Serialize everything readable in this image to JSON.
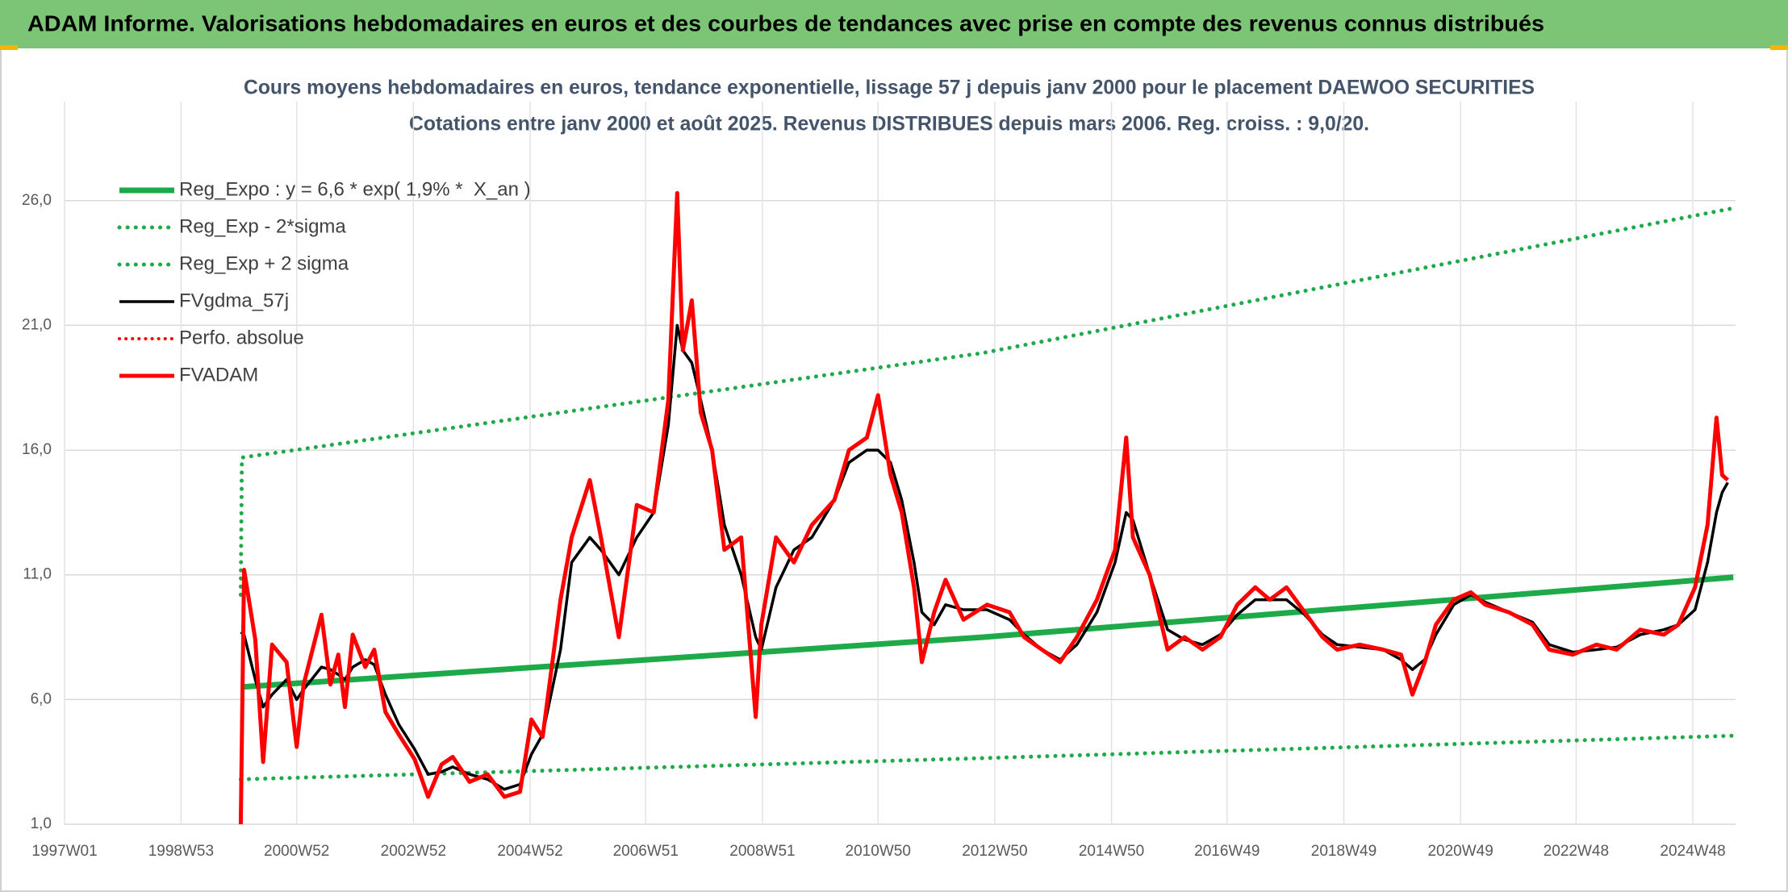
{
  "header": {
    "title": "ADAM Informe. Valorisations hebdomadaires en euros et des courbes de tendances avec prise en compte des revenus connus distribués"
  },
  "chart_data": {
    "type": "line",
    "title": "Cours moyens hebdomadaires en euros, tendance exponentielle, lissage 57 j depuis janv 2000 pour le placement DAEWOO SECURITIES",
    "subtitle": "Cotations entre janv 2000 et août 2025. Revenus DISTRIBUES depuis mars 2006. Reg. croiss. : 9,0/20.",
    "xlim": [
      "1997W01",
      "2025W34"
    ],
    "xticks": [
      "1997W01",
      "1998W53",
      "2000W52",
      "2002W52",
      "2004W52",
      "2006W51",
      "2008W51",
      "2010W50",
      "2012W50",
      "2014W50",
      "2016W49",
      "2018W49",
      "2020W49",
      "2022W48",
      "2024W48"
    ],
    "ylim": [
      1,
      29
    ],
    "yticks": [
      {
        "value": 1,
        "label": "1,0"
      },
      {
        "value": 6,
        "label": "6,0"
      },
      {
        "value": 11,
        "label": "11,0"
      },
      {
        "value": 16,
        "label": "16,0"
      },
      {
        "value": 21,
        "label": "21,0"
      },
      {
        "value": 26,
        "label": "26,0"
      }
    ],
    "grid": true,
    "legend": "top-left",
    "x": [
      "2000W02",
      "2000W05",
      "2000W15",
      "2000W22",
      "2000W30",
      "2000W43",
      "2000W52",
      "2001W06",
      "2001W22",
      "2001W30",
      "2001W37",
      "2001W43",
      "2001W50",
      "2002W09",
      "2002W17",
      "2002W27",
      "2002W39",
      "2003W01",
      "2003W13",
      "2003W25",
      "2003W35",
      "2003W50",
      "2004W14",
      "2004W29",
      "2004W43",
      "2005W01",
      "2005W11",
      "2005W27",
      "2005W37",
      "2006W01",
      "2006W11",
      "2006W27",
      "2006W43",
      "2007W06",
      "2007W19",
      "2007W27",
      "2007W32",
      "2007W40",
      "2007W48",
      "2008W06",
      "2008W17",
      "2008W32",
      "2008W45",
      "2008W50",
      "2009W11",
      "2009W27",
      "2009W43",
      "2010W11",
      "2010W24",
      "2010W40",
      "2010W50",
      "2011W09",
      "2011W19",
      "2011W30",
      "2011W37",
      "2011W48",
      "2012W06",
      "2012W22",
      "2012W43",
      "2013W11",
      "2013W24",
      "2013W40",
      "2014W04",
      "2014W19",
      "2014W37",
      "2015W01",
      "2015W11",
      "2015W17",
      "2015W32",
      "2015W48",
      "2016W11",
      "2016W27",
      "2016W43",
      "2017W06",
      "2017W22",
      "2017W35",
      "2017W50",
      "2018W14",
      "2018W30",
      "2018W43",
      "2019W11",
      "2019W32",
      "2019W48",
      "2020W06",
      "2020W17",
      "2020W27",
      "2020W43",
      "2021W06",
      "2021W19",
      "2021W40",
      "2022W09",
      "2022W24",
      "2022W45",
      "2023W14",
      "2023W32",
      "2024W01",
      "2024W22",
      "2024W35",
      "2024W50",
      "2025W09",
      "2025W17",
      "2025W22",
      "2025W27"
    ],
    "series": [
      {
        "name": "Reg_Expo : y = 6,6 * exp( 1,9% *  X_an )",
        "color": "#1faa4a",
        "dash": "solid",
        "width": 7,
        "x": [
          "2000W02",
          "2012W40",
          "2025W32"
        ],
        "values": [
          6.5,
          8.5,
          10.9
        ]
      },
      {
        "name": "Reg_Exp - 2*sigma",
        "color": "#1faa4a",
        "dash": "dotted",
        "width": 5,
        "x": [
          "2000W02",
          "2012W40",
          "2025W32"
        ],
        "values": [
          2.8,
          3.65,
          4.55
        ]
      },
      {
        "name": "Reg_Exp + 2 sigma",
        "color": "#1faa4a",
        "dash": "dotted",
        "width": 5,
        "x": [
          "2000W02",
          "2000W03",
          "2012W40",
          "2025W32"
        ],
        "values": [
          10.2,
          15.7,
          19.9,
          25.7
        ]
      },
      {
        "name": "FVgdma_57j",
        "color": "#000000",
        "dash": "solid",
        "width": 3.5,
        "values": [
          8.7,
          8.6,
          6.8,
          5.7,
          6.2,
          6.8,
          6.0,
          6.4,
          7.3,
          7.2,
          7.0,
          6.8,
          7.3,
          7.6,
          7.4,
          6.2,
          5.0,
          4.0,
          3.0,
          3.1,
          3.3,
          3.0,
          2.8,
          2.4,
          2.6,
          3.8,
          4.6,
          8.0,
          11.5,
          12.5,
          12.0,
          11.0,
          12.5,
          13.5,
          17.0,
          21.0,
          20.0,
          19.5,
          18.0,
          16.0,
          13.0,
          11.0,
          8.5,
          8.0,
          10.5,
          12.0,
          12.5,
          14.0,
          15.5,
          16.0,
          16.0,
          15.5,
          14.0,
          11.5,
          9.5,
          9.0,
          9.8,
          9.6,
          9.6,
          9.2,
          8.6,
          8.0,
          7.6,
          8.2,
          9.5,
          11.5,
          13.5,
          13.2,
          11.0,
          8.8,
          8.4,
          8.2,
          8.6,
          9.4,
          10.0,
          10.0,
          10.0,
          9.4,
          8.6,
          8.2,
          8.1,
          8.0,
          7.6,
          7.2,
          7.6,
          8.6,
          9.8,
          10.2,
          9.9,
          9.5,
          9.1,
          8.2,
          7.9,
          8.0,
          8.1,
          8.6,
          8.8,
          9.0,
          9.6,
          11.5,
          13.5,
          14.3,
          14.7
        ]
      },
      {
        "name": "Perfo. absolue",
        "color": "#ff0000",
        "dash": "dotted",
        "width": 4,
        "x": [],
        "values": []
      },
      {
        "name": "FVADAM",
        "color": "#ff0000",
        "dash": "solid",
        "width": 5,
        "values": [
          1.0,
          11.2,
          8.4,
          3.5,
          8.2,
          7.5,
          4.1,
          6.6,
          9.4,
          6.6,
          7.8,
          5.7,
          8.6,
          7.3,
          8.0,
          5.5,
          4.6,
          3.6,
          2.1,
          3.4,
          3.7,
          2.7,
          3.0,
          2.1,
          2.3,
          5.2,
          4.5,
          10.0,
          12.5,
          14.8,
          12.5,
          8.5,
          13.8,
          13.5,
          18.0,
          26.3,
          20.0,
          22.0,
          17.5,
          16.0,
          12.0,
          12.5,
          5.3,
          9.0,
          12.5,
          11.5,
          13.0,
          14.0,
          16.0,
          16.5,
          18.2,
          15.0,
          13.5,
          10.5,
          7.5,
          9.5,
          10.8,
          9.2,
          9.8,
          9.5,
          8.5,
          8.0,
          7.5,
          8.5,
          10.0,
          12.0,
          16.5,
          12.5,
          11.0,
          8.0,
          8.5,
          8.0,
          8.5,
          9.8,
          10.5,
          10.0,
          10.5,
          9.5,
          8.5,
          8.0,
          8.2,
          8.0,
          7.8,
          6.2,
          7.5,
          9.0,
          10.0,
          10.3,
          9.8,
          9.5,
          9.0,
          8.0,
          7.8,
          8.2,
          8.0,
          8.8,
          8.6,
          9.0,
          10.5,
          13.0,
          17.3,
          15.0,
          14.8
        ]
      }
    ]
  }
}
